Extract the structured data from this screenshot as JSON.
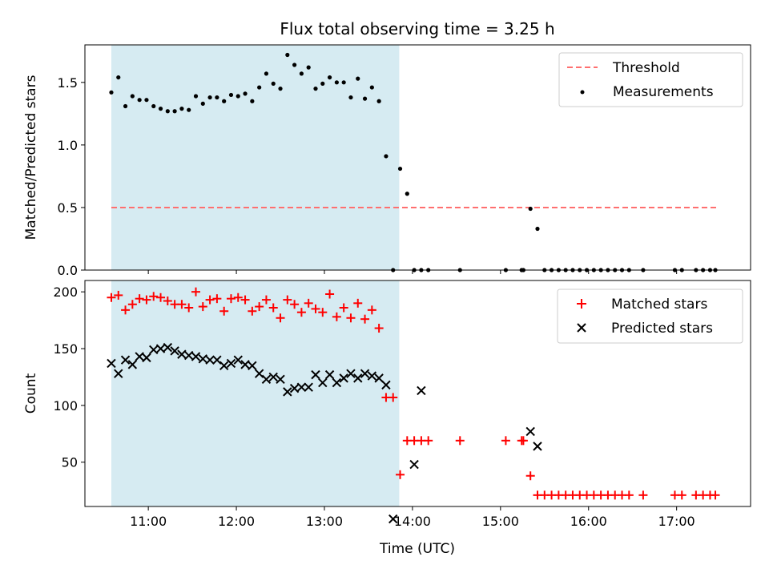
{
  "title": "Flux total observing time = 3.25 h",
  "colors": {
    "shade": "#add8e6",
    "threshold": "#ff6f6f",
    "measurements": "#000000",
    "matched": "#ff0000",
    "predicted": "#000000"
  },
  "chart_data": [
    {
      "type": "scatter",
      "ylabel": "Matched/Predicted stars",
      "xlim": [
        10.28,
        17.84
      ],
      "ylim": [
        0,
        1.8
      ],
      "yticks": [
        0.0,
        0.5,
        1.0,
        1.5
      ],
      "yticklabels": [
        "0.0",
        "0.5",
        "1.0",
        "1.5"
      ],
      "xticks": [
        11,
        12,
        13,
        14,
        15,
        16,
        17
      ],
      "show_xticklabels": false,
      "shaded_span": [
        10.58,
        13.85
      ],
      "threshold": {
        "name": "Threshold",
        "value": 0.5,
        "x_range": [
          10.58,
          17.45
        ]
      },
      "legend": {
        "location": "top-right",
        "entries": [
          "Threshold",
          "Measurements"
        ]
      },
      "series": [
        {
          "name": "Measurements",
          "marker": "dot",
          "x": [
            10.58,
            10.66,
            10.74,
            10.82,
            10.9,
            10.98,
            11.06,
            11.14,
            11.22,
            11.3,
            11.38,
            11.46,
            11.54,
            11.62,
            11.7,
            11.78,
            11.86,
            11.94,
            12.02,
            12.1,
            12.18,
            12.26,
            12.34,
            12.42,
            12.5,
            12.58,
            12.66,
            12.74,
            12.82,
            12.9,
            12.98,
            13.06,
            13.14,
            13.22,
            13.3,
            13.38,
            13.46,
            13.54,
            13.62,
            13.7,
            13.78,
            13.86,
            13.94,
            14.02,
            14.1,
            14.18,
            14.54,
            15.06,
            15.24,
            15.26,
            15.34,
            15.42,
            15.5,
            15.58,
            15.66,
            15.74,
            15.82,
            15.9,
            15.98,
            16.06,
            16.14,
            16.22,
            16.3,
            16.38,
            16.46,
            16.62,
            16.98,
            17.06,
            17.22,
            17.3,
            17.38,
            17.44
          ],
          "y": [
            1.42,
            1.54,
            1.31,
            1.39,
            1.36,
            1.36,
            1.31,
            1.29,
            1.27,
            1.27,
            1.29,
            1.28,
            1.39,
            1.33,
            1.38,
            1.38,
            1.35,
            1.4,
            1.39,
            1.41,
            1.35,
            1.46,
            1.57,
            1.49,
            1.45,
            1.72,
            1.64,
            1.57,
            1.62,
            1.45,
            1.49,
            1.54,
            1.5,
            1.5,
            1.38,
            1.53,
            1.37,
            1.46,
            1.35,
            0.91,
            0.0,
            0.81,
            0.61,
            0.0,
            0.0,
            0.0,
            0.0,
            0.0,
            0.0,
            0.0,
            0.49,
            0.33,
            0.0,
            0.0,
            0.0,
            0.0,
            0.0,
            0.0,
            0.0,
            0.0,
            0.0,
            0.0,
            0.0,
            0.0,
            0.0,
            0.0,
            0.0,
            0.0,
            0.0,
            0.0,
            0.0,
            0.0
          ]
        }
      ]
    },
    {
      "type": "scatter",
      "xlabel": "Time (UTC)",
      "ylabel": "Count",
      "xlim": [
        10.28,
        17.84
      ],
      "ylim": [
        11,
        210
      ],
      "yticks": [
        50,
        100,
        150,
        200
      ],
      "yticklabels": [
        "50",
        "100",
        "150",
        "200"
      ],
      "xticks": [
        11,
        12,
        13,
        14,
        15,
        16,
        17
      ],
      "xticklabels": [
        "11:00",
        "12:00",
        "13:00",
        "14:00",
        "15:00",
        "16:00",
        "17:00"
      ],
      "shaded_span": [
        10.58,
        13.85
      ],
      "legend": {
        "location": "top-right",
        "entries": [
          "Matched stars",
          "Predicted stars"
        ]
      },
      "series": [
        {
          "name": "Matched stars",
          "marker": "plus",
          "x": [
            10.58,
            10.66,
            10.74,
            10.82,
            10.9,
            10.98,
            11.06,
            11.14,
            11.22,
            11.3,
            11.38,
            11.46,
            11.54,
            11.62,
            11.7,
            11.78,
            11.86,
            11.94,
            12.02,
            12.1,
            12.18,
            12.26,
            12.34,
            12.42,
            12.5,
            12.58,
            12.66,
            12.74,
            12.82,
            12.9,
            12.98,
            13.06,
            13.14,
            13.22,
            13.3,
            13.38,
            13.46,
            13.54,
            13.62,
            13.7,
            13.78,
            13.86,
            13.94,
            14.02,
            14.1,
            14.18,
            14.54,
            15.06,
            15.24,
            15.26,
            15.34,
            15.42,
            15.5,
            15.58,
            15.66,
            15.74,
            15.82,
            15.9,
            15.98,
            16.06,
            16.14,
            16.22,
            16.3,
            16.38,
            16.46,
            16.62,
            16.98,
            17.06,
            17.22,
            17.3,
            17.38,
            17.44
          ],
          "y": [
            195,
            197,
            184,
            189,
            194,
            193,
            196,
            195,
            192,
            189,
            189,
            186,
            200,
            187,
            193,
            194,
            183,
            194,
            195,
            193,
            183,
            187,
            193,
            186,
            177,
            193,
            189,
            182,
            190,
            185,
            182,
            198,
            178,
            186,
            177,
            190,
            176,
            184,
            168,
            107,
            107,
            39,
            69,
            69,
            69,
            69,
            69,
            69,
            69,
            69,
            38,
            21,
            21,
            21,
            21,
            21,
            21,
            21,
            21,
            21,
            21,
            21,
            21,
            21,
            21,
            21,
            21,
            21,
            21,
            21,
            21,
            21
          ]
        },
        {
          "name": "Predicted stars",
          "marker": "x",
          "x": [
            10.58,
            10.66,
            10.74,
            10.82,
            10.9,
            10.98,
            11.06,
            11.14,
            11.22,
            11.3,
            11.38,
            11.46,
            11.54,
            11.62,
            11.7,
            11.78,
            11.86,
            11.94,
            12.02,
            12.1,
            12.18,
            12.26,
            12.34,
            12.42,
            12.5,
            12.58,
            12.66,
            12.74,
            12.82,
            12.9,
            12.98,
            13.06,
            13.14,
            13.22,
            13.3,
            13.38,
            13.46,
            13.54,
            13.62,
            13.7,
            13.78,
            14.02,
            14.1,
            15.34,
            15.42
          ],
          "y": [
            137,
            128,
            140,
            136,
            143,
            142,
            149,
            150,
            151,
            148,
            145,
            144,
            143,
            141,
            140,
            140,
            135,
            137,
            140,
            136,
            135,
            128,
            123,
            125,
            123,
            112,
            115,
            116,
            116,
            127,
            120,
            127,
            120,
            124,
            128,
            124,
            128,
            126,
            124,
            118,
            0,
            48,
            113,
            77,
            64
          ]
        }
      ]
    }
  ]
}
